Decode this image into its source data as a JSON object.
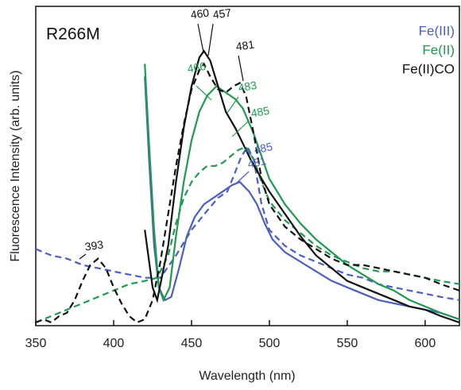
{
  "chart_data": {
    "type": "line",
    "title": "R266M",
    "x_label": "Wavelength (nm)",
    "y_label": "Fluorescence Intensity (arb. units)",
    "xlim": [
      350,
      622
    ],
    "ylim": [
      0,
      100
    ],
    "xticks": [
      350,
      400,
      450,
      500,
      550,
      600
    ],
    "series": [
      {
        "name": "Fe(III)",
        "color": "#4a5fc1",
        "solid": {
          "x": [
            420,
            423,
            426,
            429,
            433,
            437,
            442,
            447,
            452,
            458,
            464,
            470,
            476,
            481,
            487,
            492,
            497,
            502,
            510,
            520,
            530,
            540,
            550,
            560,
            570,
            580,
            590,
            600,
            610,
            622
          ],
          "values": [
            78,
            50,
            25,
            12,
            8,
            9,
            18,
            28,
            34,
            38,
            40,
            42,
            44,
            45,
            42,
            38,
            32,
            27,
            23,
            20,
            17,
            14,
            12,
            10,
            8,
            7,
            6,
            5,
            4,
            2
          ]
        },
        "dashed": {
          "x": [
            350,
            360,
            370,
            380,
            390,
            400,
            410,
            420,
            430,
            440,
            450,
            460,
            467,
            473,
            478,
            482,
            486,
            490,
            495,
            500,
            510,
            520,
            530,
            540,
            550,
            560,
            570,
            580,
            590,
            600,
            610,
            622
          ],
          "values": [
            24,
            22,
            21,
            19,
            18,
            17,
            16,
            15,
            15,
            22,
            30,
            36,
            40,
            42,
            48,
            53,
            56,
            52,
            38,
            30,
            25,
            22,
            20,
            18,
            16,
            15,
            13,
            12,
            11,
            10,
            9,
            8
          ]
        }
      },
      {
        "name": "Fe(II)",
        "color": "#1f9a4f",
        "solid": {
          "x": [
            420,
            423,
            426,
            429,
            432,
            436,
            440,
            445,
            450,
            455,
            460,
            466,
            472,
            478,
            483,
            490,
            495,
            500,
            510,
            520,
            530,
            540,
            550,
            560,
            570,
            580,
            590,
            600,
            610,
            622
          ],
          "values": [
            82,
            55,
            30,
            12,
            8,
            12,
            28,
            45,
            58,
            67,
            72,
            75,
            73,
            71,
            68,
            60,
            53,
            46,
            38,
            32,
            27,
            23,
            19,
            16,
            13,
            11,
            8,
            6,
            4,
            2
          ]
        },
        "dashed": {
          "x": [
            350,
            360,
            370,
            380,
            390,
            400,
            410,
            420,
            428,
            435,
            440,
            445,
            450,
            455,
            460,
            465,
            470,
            475,
            480,
            485,
            490,
            495,
            500,
            510,
            520,
            530,
            540,
            550,
            560,
            570,
            580,
            590,
            600,
            610,
            622
          ],
          "values": [
            1,
            3,
            5,
            7,
            9,
            11,
            13,
            14,
            15,
            22,
            32,
            40,
            45,
            48,
            50,
            50,
            51,
            53,
            55,
            56,
            52,
            45,
            39,
            33,
            29,
            25,
            22,
            20,
            18,
            17,
            17,
            16,
            15,
            14,
            13
          ]
        }
      },
      {
        "name": "Fe(II)CO",
        "color": "#111111",
        "solid": {
          "x": [
            420,
            425,
            428,
            435,
            440,
            445,
            450,
            455,
            458,
            462,
            467,
            472,
            478,
            482,
            488,
            495,
            500,
            510,
            520,
            530,
            540,
            550,
            560,
            570,
            580,
            590,
            600,
            610,
            622
          ],
          "values": [
            30,
            12,
            8,
            25,
            45,
            62,
            75,
            84,
            86,
            83,
            75,
            67,
            62,
            58,
            52,
            46,
            42,
            35,
            28,
            22,
            18,
            14,
            12,
            10,
            8,
            6,
            5,
            3,
            1
          ]
        },
        "dashed": {
          "x": [
            350,
            355,
            360,
            365,
            370,
            375,
            380,
            385,
            390,
            395,
            400,
            405,
            410,
            415,
            420,
            425,
            430,
            435,
            440,
            445,
            450,
            455,
            458,
            462,
            467,
            472,
            477,
            481,
            485,
            490,
            495,
            500,
            510,
            520,
            530,
            540,
            550,
            560,
            570,
            580,
            590,
            600,
            610,
            622
          ],
          "values": [
            1,
            2,
            1,
            3,
            4,
            8,
            14,
            19,
            21,
            18,
            12,
            7,
            3,
            1,
            2,
            8,
            20,
            35,
            50,
            63,
            74,
            80,
            82,
            78,
            74,
            73,
            75,
            76,
            72,
            60,
            46,
            38,
            31,
            27,
            24,
            21,
            19,
            19,
            18,
            17,
            16,
            15,
            13,
            11
          ]
        }
      }
    ],
    "annotations": [
      {
        "text": "460",
        "color": "#111111"
      },
      {
        "text": "457",
        "color": "#111111"
      },
      {
        "text": "481",
        "color": "#111111"
      },
      {
        "text": "466",
        "color": "#1f9a4f"
      },
      {
        "text": "483",
        "color": "#1f9a4f"
      },
      {
        "text": "485",
        "color": "#1f9a4f"
      },
      {
        "text": "485",
        "color": "#4a5fc1"
      },
      {
        "text": "481",
        "color": "#4a5fc1"
      },
      {
        "text": "393",
        "color": "#111111"
      }
    ]
  }
}
